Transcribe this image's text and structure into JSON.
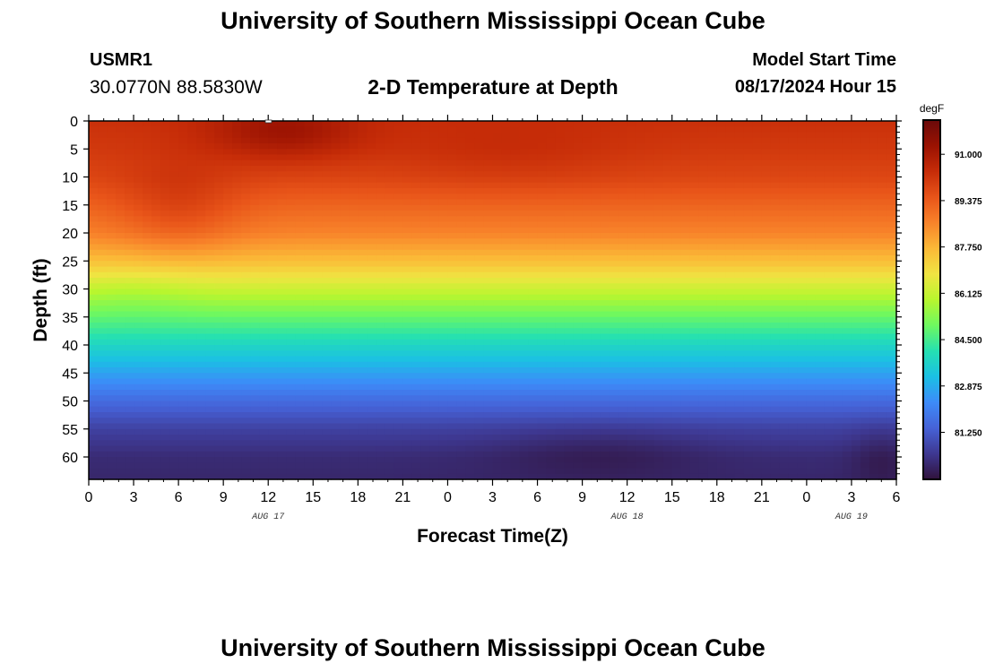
{
  "header": {
    "title": "University of Southern Mississippi Ocean Cube",
    "station": "USMR1",
    "coords": "30.0770N  88.5830W",
    "subtitle": "2-D Temperature at Depth",
    "model_label": "Model Start Time",
    "model_time": "08/17/2024 Hour 15"
  },
  "footer": {
    "title": "University of Southern Mississippi Ocean Cube"
  },
  "chart_data": {
    "type": "heatmap",
    "xlabel": "Forecast Time(Z)",
    "ylabel": "Depth (ft)",
    "x_ticks": [
      "0",
      "3",
      "6",
      "9",
      "12",
      "15",
      "18",
      "21",
      "0",
      "3",
      "6",
      "9",
      "12",
      "15",
      "18",
      "21",
      "0",
      "3",
      "6"
    ],
    "date_labels": [
      {
        "label": "AUG 17",
        "tick_index": 4
      },
      {
        "label": "AUG 18",
        "tick_index": 12
      },
      {
        "label": "AUG 19",
        "tick_index": 17
      }
    ],
    "xlim": [
      0,
      54
    ],
    "ylim": [
      0,
      64
    ],
    "y_ticks": [
      0,
      5,
      10,
      15,
      20,
      25,
      30,
      35,
      40,
      45,
      50,
      55,
      60
    ],
    "colorbar": {
      "unit": "degF",
      "min": 79.6,
      "max": 92.2,
      "tick_values": [
        91.0,
        89.375,
        87.75,
        86.125,
        84.5,
        82.875,
        81.25
      ],
      "tick_labels": [
        "91.000",
        "89.375",
        "87.750",
        "86.125",
        "84.500",
        "82.875",
        "81.250"
      ],
      "stops": [
        "#30123b",
        "#3e3891",
        "#4662d7",
        "#3d8bf9",
        "#1bc0e4",
        "#25e0b2",
        "#6ef860",
        "#b8f62e",
        "#f0e442",
        "#fbb937",
        "#f8832a",
        "#e85419",
        "#c62c08",
        "#9a1202",
        "#6a0a0a"
      ]
    },
    "depth_profile": {
      "depths": [
        0,
        5,
        10,
        15,
        20,
        25,
        30,
        35,
        40,
        45,
        50,
        55,
        60,
        64
      ],
      "temps": [
        90.3,
        90.1,
        89.8,
        89.2,
        88.6,
        87.6,
        86.2,
        84.9,
        83.8,
        82.7,
        81.6,
        80.7,
        80.2,
        80.1
      ]
    }
  }
}
